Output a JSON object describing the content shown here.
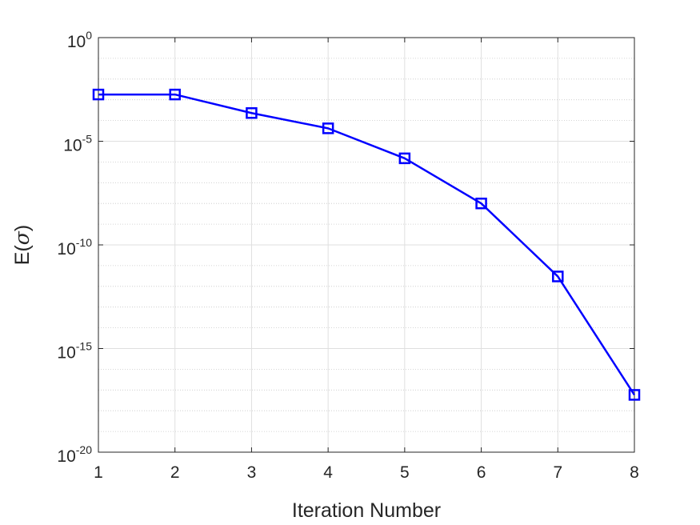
{
  "chart_data": {
    "type": "line",
    "xlabel": "Iteration Number",
    "ylabel": {
      "prefix": "E(",
      "symbol": "σ",
      "suffix": ")"
    },
    "x": [
      1,
      2,
      3,
      4,
      5,
      6,
      7,
      8
    ],
    "series": [
      {
        "color": "#0000ff",
        "marker": "square",
        "values": [
          0.0018,
          0.0018,
          0.00023,
          4.2e-05,
          1.5e-06,
          1e-08,
          3e-12,
          5.8e-18
        ]
      }
    ],
    "xlim": [
      1,
      8
    ],
    "ylim": [
      1e-20,
      1
    ],
    "yscale": "log",
    "xticks": [
      "1",
      "2",
      "3",
      "4",
      "5",
      "6",
      "7",
      "8"
    ],
    "yticks": [
      {
        "value": 1e-20,
        "base": "10",
        "exp": "-20"
      },
      {
        "value": 1e-15,
        "base": "10",
        "exp": "-15"
      },
      {
        "value": 1e-10,
        "base": "10",
        "exp": "-10"
      },
      {
        "value": 1e-05,
        "base": "10",
        "exp": "-5"
      },
      {
        "value": 1,
        "base": "10",
        "exp": "0"
      }
    ],
    "grid": true,
    "minor_grid": true
  }
}
